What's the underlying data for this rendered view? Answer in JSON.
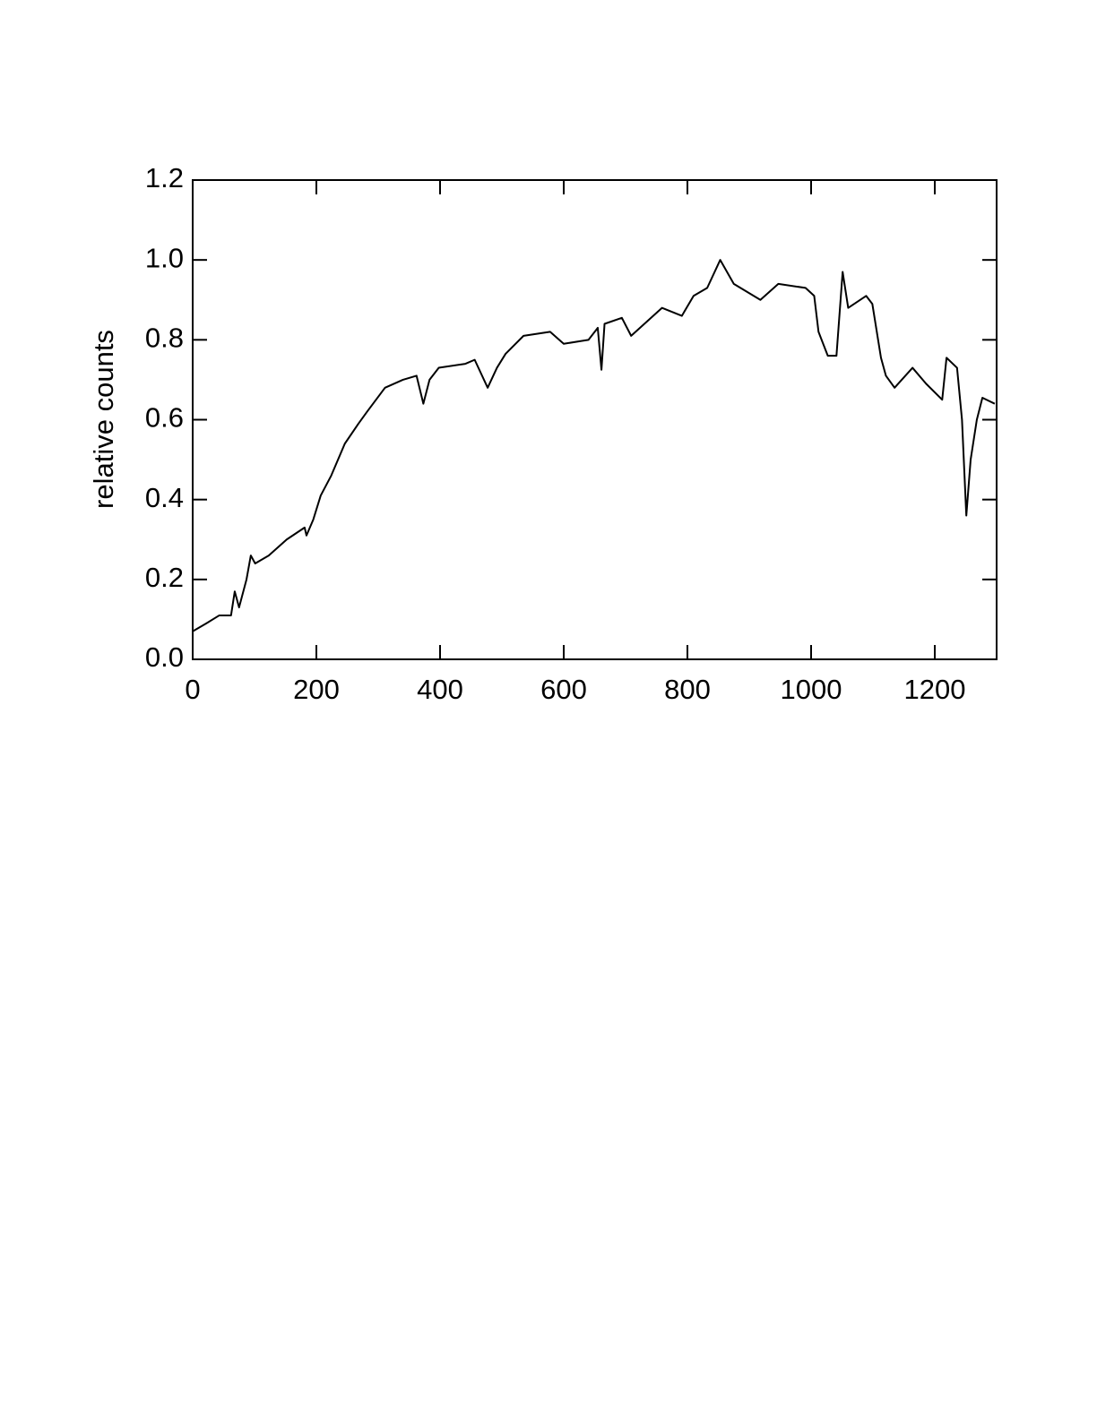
{
  "chart_data": {
    "type": "line",
    "y_label": "relative counts",
    "x": [
      0,
      22,
      43,
      62,
      68,
      75,
      87,
      94,
      101,
      123,
      152,
      181,
      184,
      195,
      207,
      224,
      246,
      268,
      282,
      311,
      340,
      362,
      373,
      383,
      398,
      441,
      456,
      477,
      492,
      506,
      535,
      578,
      600,
      640,
      655,
      661,
      666,
      694,
      709,
      759,
      791,
      810,
      832,
      853,
      875,
      918,
      947,
      991,
      1005,
      1012,
      1027,
      1041,
      1051,
      1060,
      1089,
      1099,
      1113,
      1121,
      1135,
      1164,
      1186,
      1212,
      1219,
      1236,
      1244,
      1251,
      1258,
      1268,
      1277,
      1297
    ],
    "series": [
      {
        "color": "#000000",
        "values": [
          0.07,
          0.09,
          0.11,
          0.11,
          0.17,
          0.13,
          0.2,
          0.26,
          0.24,
          0.26,
          0.3,
          0.33,
          0.31,
          0.35,
          0.41,
          0.46,
          0.54,
          0.59,
          0.62,
          0.68,
          0.7,
          0.71,
          0.64,
          0.7,
          0.73,
          0.74,
          0.75,
          0.68,
          0.73,
          0.765,
          0.81,
          0.82,
          0.79,
          0.8,
          0.83,
          0.725,
          0.84,
          0.855,
          0.81,
          0.88,
          0.86,
          0.91,
          0.93,
          1.0,
          0.94,
          0.9,
          0.94,
          0.93,
          0.91,
          0.82,
          0.76,
          0.76,
          0.97,
          0.88,
          0.91,
          0.89,
          0.755,
          0.71,
          0.68,
          0.73,
          0.69,
          0.65,
          0.755,
          0.73,
          0.6,
          0.36,
          0.5,
          0.6,
          0.655,
          0.64
        ]
      }
    ],
    "xlim": [
      0,
      1300
    ],
    "xticks": [
      0,
      200,
      400,
      600,
      800,
      1000,
      1200
    ],
    "ylim": [
      0,
      1.2
    ],
    "yticks": [
      {
        "value": 0,
        "label": "0.0"
      },
      0.2,
      0.4,
      0.6,
      0.8,
      {
        "value": 1,
        "label": "1.0"
      },
      1.2
    ],
    "grid": false
  }
}
